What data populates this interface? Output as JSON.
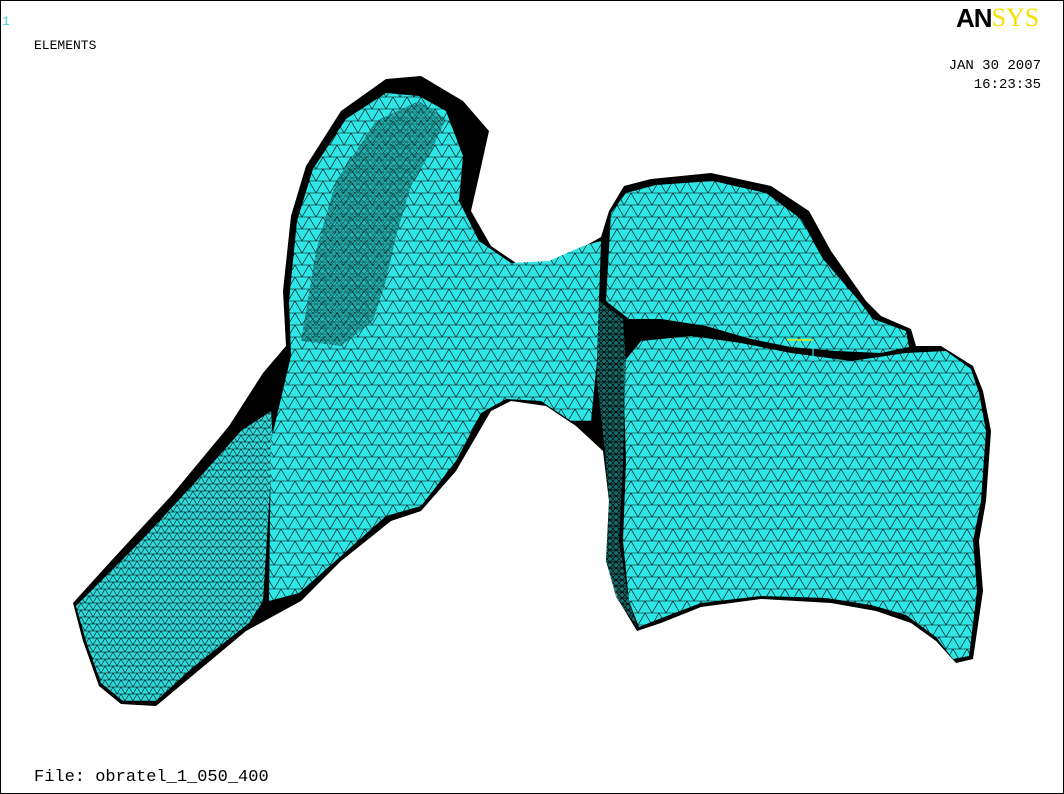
{
  "header": {
    "window_number": "1",
    "plot_type": "ELEMENTS",
    "date": "JAN 30 2007",
    "time": "16:23:35"
  },
  "logo": {
    "part1": "AN",
    "part2": "SYS",
    "colors": {
      "part1": "#000000",
      "part2": "#f2e000"
    }
  },
  "footer": {
    "file_label": "File:",
    "file_name": "obratel_1_050_400"
  },
  "mesh": {
    "fill_color": "#2fe6e6",
    "edge_color": "#000000",
    "icon": "fe-mesh-vertebra"
  },
  "triad": {
    "colors": {
      "x": "#e6e600",
      "y": "#40e0e0"
    }
  }
}
